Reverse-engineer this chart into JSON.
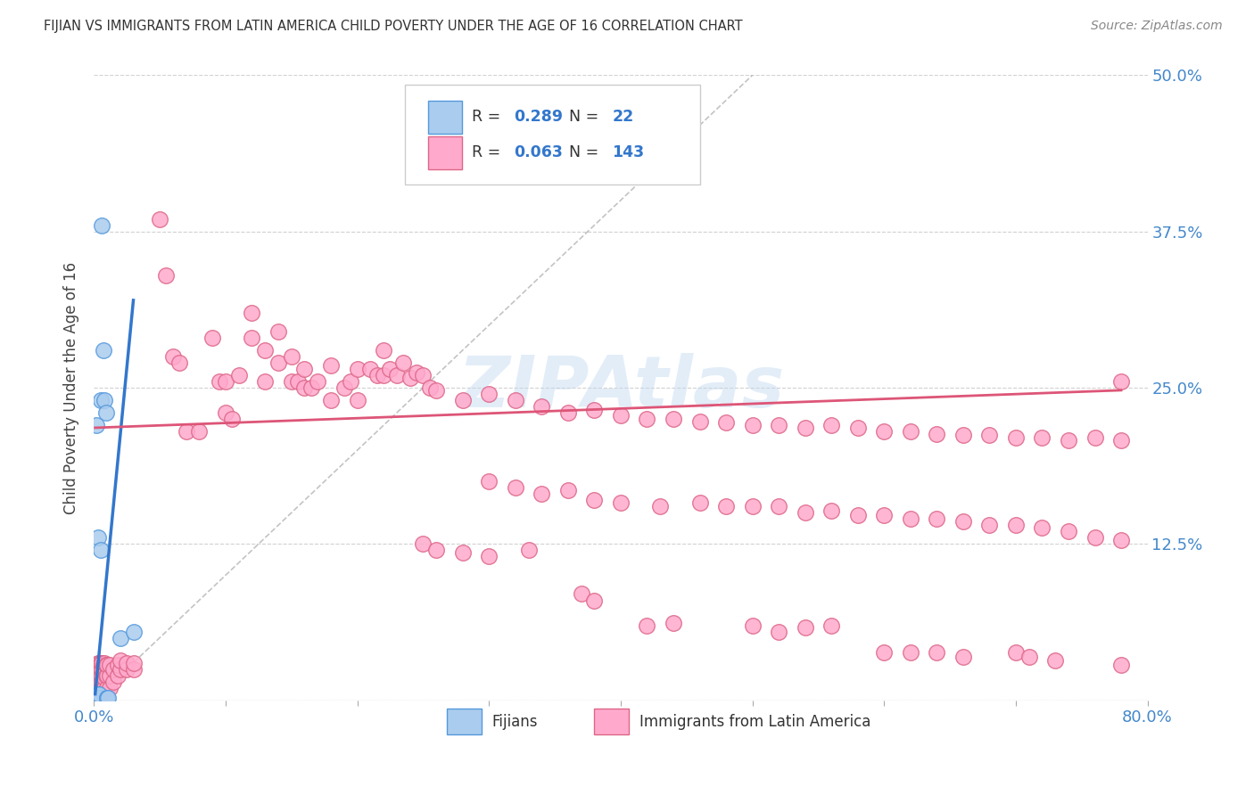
{
  "title": "FIJIAN VS IMMIGRANTS FROM LATIN AMERICA CHILD POVERTY UNDER THE AGE OF 16 CORRELATION CHART",
  "source": "Source: ZipAtlas.com",
  "ylabel": "Child Poverty Under the Age of 16",
  "xlim": [
    0.0,
    0.8
  ],
  "ylim": [
    0.0,
    0.5
  ],
  "xtick_positions": [
    0.0,
    0.1,
    0.2,
    0.3,
    0.4,
    0.5,
    0.6,
    0.7,
    0.8
  ],
  "xticklabels": [
    "0.0%",
    "",
    "",
    "",
    "",
    "",
    "",
    "",
    "80.0%"
  ],
  "ytick_positions": [
    0.0,
    0.125,
    0.25,
    0.375,
    0.5
  ],
  "yticklabels": [
    "",
    "12.5%",
    "25.0%",
    "37.5%",
    "50.0%"
  ],
  "color_fijian_fill": "#aaccee",
  "color_fijian_edge": "#5599dd",
  "color_latin_fill": "#ffaacc",
  "color_latin_edge": "#dd6688",
  "color_fijian_line": "#3377cc",
  "color_latin_line": "#dd5577",
  "color_diagonal": "#aaaaaa",
  "watermark": "ZIPAtlas",
  "fijian_points": [
    [
      0.001,
      0.002
    ],
    [
      0.001,
      0.003
    ],
    [
      0.001,
      0.004
    ],
    [
      0.001,
      0.005
    ],
    [
      0.002,
      0.002
    ],
    [
      0.002,
      0.004
    ],
    [
      0.002,
      0.22
    ],
    [
      0.003,
      0.002
    ],
    [
      0.003,
      0.13
    ],
    [
      0.003,
      0.005
    ],
    [
      0.004,
      0.002
    ],
    [
      0.004,
      0.005
    ],
    [
      0.005,
      0.12
    ],
    [
      0.005,
      0.24
    ],
    [
      0.006,
      0.38
    ],
    [
      0.007,
      0.28
    ],
    [
      0.008,
      0.24
    ],
    [
      0.009,
      0.23
    ],
    [
      0.01,
      0.002
    ],
    [
      0.01,
      0.002
    ],
    [
      0.011,
      0.002
    ],
    [
      0.02,
      0.05
    ],
    [
      0.03,
      0.055
    ]
  ],
  "latin_points": [
    [
      0.001,
      0.002
    ],
    [
      0.001,
      0.005
    ],
    [
      0.001,
      0.01
    ],
    [
      0.001,
      0.015
    ],
    [
      0.002,
      0.002
    ],
    [
      0.002,
      0.005
    ],
    [
      0.002,
      0.01
    ],
    [
      0.002,
      0.015
    ],
    [
      0.002,
      0.02
    ],
    [
      0.002,
      0.025
    ],
    [
      0.003,
      0.002
    ],
    [
      0.003,
      0.005
    ],
    [
      0.003,
      0.01
    ],
    [
      0.003,
      0.015
    ],
    [
      0.003,
      0.02
    ],
    [
      0.003,
      0.025
    ],
    [
      0.003,
      0.03
    ],
    [
      0.004,
      0.002
    ],
    [
      0.004,
      0.008
    ],
    [
      0.004,
      0.015
    ],
    [
      0.004,
      0.02
    ],
    [
      0.004,
      0.025
    ],
    [
      0.004,
      0.03
    ],
    [
      0.005,
      0.005
    ],
    [
      0.005,
      0.01
    ],
    [
      0.005,
      0.015
    ],
    [
      0.005,
      0.02
    ],
    [
      0.005,
      0.025
    ],
    [
      0.005,
      0.03
    ],
    [
      0.006,
      0.005
    ],
    [
      0.006,
      0.01
    ],
    [
      0.006,
      0.015
    ],
    [
      0.006,
      0.02
    ],
    [
      0.006,
      0.025
    ],
    [
      0.006,
      0.03
    ],
    [
      0.007,
      0.008
    ],
    [
      0.007,
      0.015
    ],
    [
      0.007,
      0.022
    ],
    [
      0.007,
      0.028
    ],
    [
      0.008,
      0.01
    ],
    [
      0.008,
      0.018
    ],
    [
      0.008,
      0.025
    ],
    [
      0.008,
      0.03
    ],
    [
      0.009,
      0.008
    ],
    [
      0.009,
      0.02
    ],
    [
      0.009,
      0.028
    ],
    [
      0.01,
      0.01
    ],
    [
      0.01,
      0.02
    ],
    [
      0.01,
      0.028
    ],
    [
      0.012,
      0.01
    ],
    [
      0.012,
      0.02
    ],
    [
      0.012,
      0.028
    ],
    [
      0.015,
      0.015
    ],
    [
      0.015,
      0.025
    ],
    [
      0.018,
      0.02
    ],
    [
      0.018,
      0.028
    ],
    [
      0.02,
      0.025
    ],
    [
      0.02,
      0.032
    ],
    [
      0.025,
      0.025
    ],
    [
      0.025,
      0.03
    ],
    [
      0.03,
      0.025
    ],
    [
      0.03,
      0.03
    ],
    [
      0.05,
      0.385
    ],
    [
      0.055,
      0.34
    ],
    [
      0.06,
      0.275
    ],
    [
      0.065,
      0.27
    ],
    [
      0.07,
      0.215
    ],
    [
      0.08,
      0.215
    ],
    [
      0.09,
      0.29
    ],
    [
      0.095,
      0.255
    ],
    [
      0.1,
      0.23
    ],
    [
      0.1,
      0.255
    ],
    [
      0.105,
      0.225
    ],
    [
      0.11,
      0.26
    ],
    [
      0.12,
      0.29
    ],
    [
      0.12,
      0.31
    ],
    [
      0.13,
      0.255
    ],
    [
      0.13,
      0.28
    ],
    [
      0.14,
      0.27
    ],
    [
      0.14,
      0.295
    ],
    [
      0.15,
      0.255
    ],
    [
      0.15,
      0.275
    ],
    [
      0.155,
      0.255
    ],
    [
      0.16,
      0.25
    ],
    [
      0.16,
      0.265
    ],
    [
      0.165,
      0.25
    ],
    [
      0.17,
      0.255
    ],
    [
      0.18,
      0.24
    ],
    [
      0.18,
      0.268
    ],
    [
      0.19,
      0.25
    ],
    [
      0.195,
      0.255
    ],
    [
      0.2,
      0.24
    ],
    [
      0.2,
      0.265
    ],
    [
      0.21,
      0.265
    ],
    [
      0.215,
      0.26
    ],
    [
      0.22,
      0.26
    ],
    [
      0.22,
      0.28
    ],
    [
      0.225,
      0.265
    ],
    [
      0.23,
      0.26
    ],
    [
      0.235,
      0.27
    ],
    [
      0.24,
      0.258
    ],
    [
      0.245,
      0.262
    ],
    [
      0.25,
      0.26
    ],
    [
      0.255,
      0.25
    ],
    [
      0.26,
      0.248
    ],
    [
      0.28,
      0.24
    ],
    [
      0.3,
      0.245
    ],
    [
      0.32,
      0.24
    ],
    [
      0.34,
      0.235
    ],
    [
      0.36,
      0.23
    ],
    [
      0.38,
      0.232
    ],
    [
      0.4,
      0.228
    ],
    [
      0.42,
      0.225
    ],
    [
      0.44,
      0.225
    ],
    [
      0.46,
      0.223
    ],
    [
      0.48,
      0.222
    ],
    [
      0.5,
      0.22
    ],
    [
      0.52,
      0.22
    ],
    [
      0.54,
      0.218
    ],
    [
      0.56,
      0.22
    ],
    [
      0.58,
      0.218
    ],
    [
      0.6,
      0.215
    ],
    [
      0.62,
      0.215
    ],
    [
      0.64,
      0.213
    ],
    [
      0.66,
      0.212
    ],
    [
      0.68,
      0.212
    ],
    [
      0.7,
      0.21
    ],
    [
      0.72,
      0.21
    ],
    [
      0.74,
      0.208
    ],
    [
      0.76,
      0.21
    ],
    [
      0.78,
      0.208
    ],
    [
      0.3,
      0.175
    ],
    [
      0.32,
      0.17
    ],
    [
      0.34,
      0.165
    ],
    [
      0.36,
      0.168
    ],
    [
      0.38,
      0.16
    ],
    [
      0.4,
      0.158
    ],
    [
      0.43,
      0.155
    ],
    [
      0.46,
      0.158
    ],
    [
      0.48,
      0.155
    ],
    [
      0.5,
      0.155
    ],
    [
      0.52,
      0.155
    ],
    [
      0.54,
      0.15
    ],
    [
      0.56,
      0.152
    ],
    [
      0.58,
      0.148
    ],
    [
      0.6,
      0.148
    ],
    [
      0.62,
      0.145
    ],
    [
      0.64,
      0.145
    ],
    [
      0.66,
      0.143
    ],
    [
      0.68,
      0.14
    ],
    [
      0.7,
      0.14
    ],
    [
      0.72,
      0.138
    ],
    [
      0.74,
      0.135
    ],
    [
      0.76,
      0.13
    ],
    [
      0.78,
      0.128
    ],
    [
      0.25,
      0.125
    ],
    [
      0.26,
      0.12
    ],
    [
      0.28,
      0.118
    ],
    [
      0.3,
      0.115
    ],
    [
      0.33,
      0.12
    ],
    [
      0.37,
      0.085
    ],
    [
      0.38,
      0.08
    ],
    [
      0.42,
      0.06
    ],
    [
      0.44,
      0.062
    ],
    [
      0.5,
      0.06
    ],
    [
      0.52,
      0.055
    ],
    [
      0.54,
      0.058
    ],
    [
      0.56,
      0.06
    ],
    [
      0.6,
      0.038
    ],
    [
      0.62,
      0.038
    ],
    [
      0.64,
      0.038
    ],
    [
      0.66,
      0.035
    ],
    [
      0.7,
      0.038
    ],
    [
      0.71,
      0.035
    ],
    [
      0.73,
      0.032
    ],
    [
      0.78,
      0.255
    ],
    [
      0.78,
      0.028
    ]
  ],
  "fijian_line_x": [
    0.001,
    0.03
  ],
  "fijian_line_y": [
    0.005,
    0.32
  ],
  "latin_line_x": [
    0.001,
    0.78
  ],
  "latin_line_y": [
    0.218,
    0.248
  ]
}
